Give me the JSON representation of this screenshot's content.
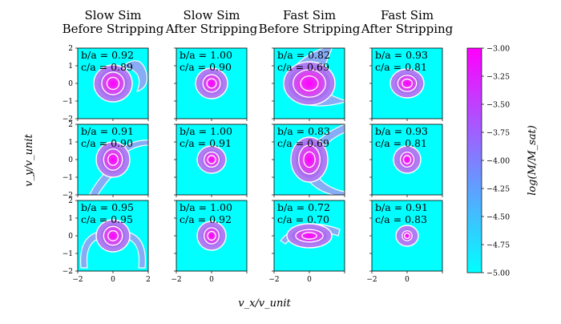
{
  "chart_data": {
    "type": "heatmap",
    "columns": [
      {
        "title_line1": "Slow Sim",
        "title_line2": "Before Stripping"
      },
      {
        "title_line1": "Slow Sim",
        "title_line2": "After Stripping"
      },
      {
        "title_line1": "Fast Sim",
        "title_line2": "Before Stripping"
      },
      {
        "title_line1": "Fast Sim",
        "title_line2": "After Stripping"
      }
    ],
    "panels": [
      [
        {
          "ba": "b/a = 0.92",
          "ca": "c/a = 0.89"
        },
        {
          "ba": "b/a = 1.00",
          "ca": "c/a = 0.90"
        },
        {
          "ba": "b/a = 0.82",
          "ca": "c/a = 0.69"
        },
        {
          "ba": "b/a = 0.93",
          "ca": "c/a = 0.81"
        }
      ],
      [
        {
          "ba": "b/a = 0.91",
          "ca": "c/a = 0.90"
        },
        {
          "ba": "b/a = 1.00",
          "ca": "c/a = 0.91"
        },
        {
          "ba": "b/a = 0.83",
          "ca": "c/a = 0.69"
        },
        {
          "ba": "b/a = 0.93",
          "ca": "c/a = 0.81"
        }
      ],
      [
        {
          "ba": "b/a = 0.95",
          "ca": "c/a = 0.95"
        },
        {
          "ba": "b/a = 1.00",
          "ca": "c/a = 0.92"
        },
        {
          "ba": "b/a = 0.72",
          "ca": "c/a = 0.70"
        },
        {
          "ba": "b/a = 0.91",
          "ca": "c/a = 0.83"
        }
      ]
    ],
    "xlabel": "v_x/v_unit",
    "ylabel": "v_y/v_unit",
    "xlim": [
      -2,
      2
    ],
    "ylim": [
      -2,
      2
    ],
    "x_ticks": [
      "−2",
      "0",
      "2"
    ],
    "y_ticks": [
      "2",
      "1",
      "0",
      "−1",
      "−2"
    ],
    "colorbar": {
      "label": "log(M/M_sat)",
      "range": [
        -5.0,
        -3.0
      ],
      "ticks": [
        "−3.00",
        "−3.25",
        "−3.50",
        "−3.75",
        "−4.00",
        "−4.25",
        "−4.50",
        "−4.75",
        "−5.00"
      ],
      "color_low": "#00ffff",
      "color_high": "#ff00ff"
    }
  }
}
